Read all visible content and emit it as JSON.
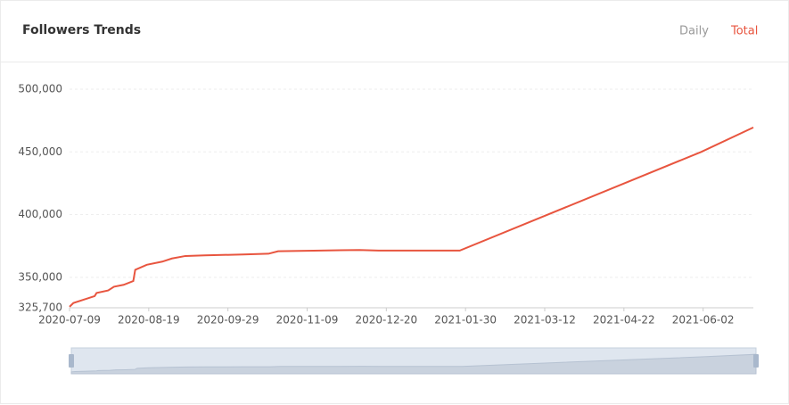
{
  "header": {
    "title": "Followers Trends",
    "tabs": [
      "Daily",
      "Total"
    ]
  },
  "chart_data": {
    "type": "line",
    "x": [
      "2020-07-09",
      "2020-07-11",
      "2020-07-17",
      "2020-07-22",
      "2020-07-23",
      "2020-07-29",
      "2020-08-01",
      "2020-08-06",
      "2020-08-11",
      "2020-08-12",
      "2020-08-18",
      "2020-08-26",
      "2020-08-31",
      "2020-09-07",
      "2020-09-17",
      "2020-10-07",
      "2020-10-20",
      "2020-10-25",
      "2020-11-16",
      "2020-12-06",
      "2020-12-16",
      "2021-01-27",
      "2021-06-01",
      "2021-06-28"
    ],
    "series": [
      {
        "name": "Total",
        "color": "#e8553f",
        "values": [
          326500,
          329500,
          332500,
          335000,
          337500,
          339500,
          342500,
          344000,
          347000,
          356000,
          360000,
          362500,
          365000,
          367000,
          367500,
          368200,
          368800,
          370800,
          371300,
          371800,
          371300,
          371300,
          450000,
          469500
        ]
      }
    ],
    "xlim": [
      "2020-07-09",
      "2021-06-28"
    ],
    "xticks": [
      "2020-07-09",
      "2020-08-19",
      "2020-09-29",
      "2020-11-09",
      "2020-12-20",
      "2021-01-30",
      "2021-03-12",
      "2021-04-22",
      "2021-06-02"
    ],
    "ylim": [
      325700,
      500000
    ],
    "yticks": [
      {
        "value": 325700,
        "label": "325,700"
      },
      {
        "value": 350000,
        "label": "350,000"
      },
      {
        "value": 400000,
        "label": "400,000"
      },
      {
        "value": 450000,
        "label": "450,000"
      },
      {
        "value": 500000,
        "label": "500,000"
      }
    ],
    "grid": true
  }
}
